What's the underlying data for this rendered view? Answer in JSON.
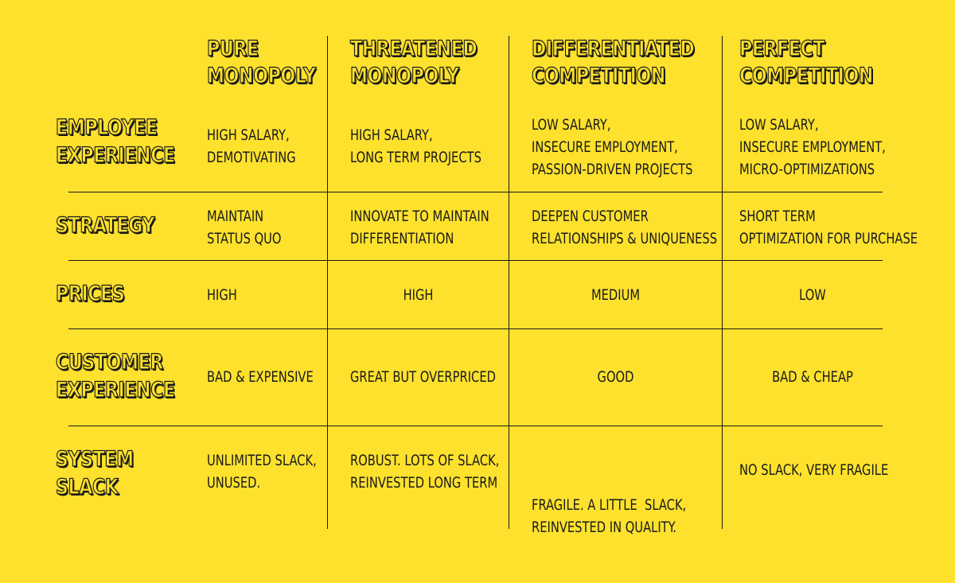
{
  "columns": [
    {
      "line1": "PURE",
      "line2": "MONOPOLY"
    },
    {
      "line1": "THREATENED",
      "line2": "MONOPOLY"
    },
    {
      "line1": "DIFFERENTIATED",
      "line2": "COMPETITION"
    },
    {
      "line1": "PERFECT",
      "line2": "COMPETITION"
    }
  ],
  "rows": [
    {
      "label1": "EMPLOYEE",
      "label2": "EXPERIENCE",
      "cells": [
        [
          "HIGH SALARY,",
          "DEMOTIVATING"
        ],
        [
          "HIGH SALARY,",
          "LONG TERM PROJECTS"
        ],
        [
          "LOW SALARY,",
          "INSECURE EMPLOYMENT,",
          "PASSION-DRIVEN PROJECTS"
        ],
        [
          "LOW SALARY,",
          "INSECURE EMPLOYMENT,",
          "MICRO-OPTIMIZATIONS"
        ]
      ]
    },
    {
      "label1": "STRATEGY",
      "label2": "",
      "cells": [
        [
          "MAINTAIN",
          "STATUS QUO"
        ],
        [
          "INNOVATE TO MAINTAIN",
          "DIFFERENTIATION"
        ],
        [
          "DEEPEN CUSTOMER",
          "RELATIONSHIPS & UNIQUENESS"
        ],
        [
          "SHORT TERM",
          "OPTIMIZATION FOR PURCHASE"
        ]
      ]
    },
    {
      "label1": "PRICES",
      "label2": "",
      "cells": [
        [
          "HIGH"
        ],
        [
          "HIGH"
        ],
        [
          "MEDIUM"
        ],
        [
          "LOW"
        ]
      ]
    },
    {
      "label1": "CUSTOMER",
      "label2": "EXPERIENCE",
      "cells": [
        [
          "BAD & EXPENSIVE"
        ],
        [
          "GREAT BUT OVERPRICED"
        ],
        [
          "GOOD"
        ],
        [
          "BAD & CHEAP"
        ]
      ]
    },
    {
      "label1": "SYSTEM",
      "label2": "SLACK",
      "cells": [
        [
          "UNLIMITED SLACK,",
          "UNUSED."
        ],
        [
          "ROBUST. LOTS OF SLACK,",
          "REINVESTED LONG TERM"
        ],
        [
          "FRAGILE. A LITTLE  SLACK,",
          "REINVESTED IN QUALITY."
        ],
        [
          "NO SLACK, VERY FRAGILE"
        ]
      ]
    }
  ]
}
